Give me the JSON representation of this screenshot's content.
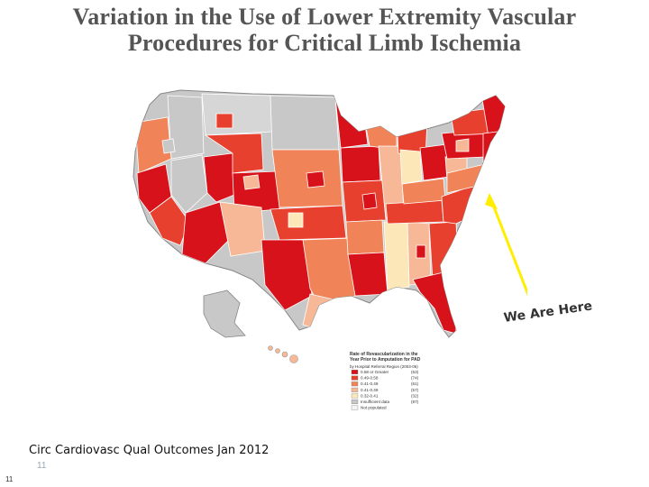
{
  "slide": {
    "title_line1": "Variation in the Use of Lower Extremity Vascular",
    "title_line2": "Procedures for Critical Limb Ischemia",
    "callout": "We Are Here",
    "citation": "Circ Cardiovasc Qual Outcomes Jan 2012",
    "page_number_inner": "11",
    "page_number_outer": "11"
  },
  "map": {
    "legend": {
      "title_line1": "Rate of Revascularization in the",
      "title_line2": "Year Prior to Amputation for PAD",
      "subtitle": "by Hospital Referral Region (2003-06)",
      "items": [
        {
          "label": "0.58 or Greater",
          "count": "(63)",
          "color": "#d8121a"
        },
        {
          "label": "0.49-0.58",
          "count": "(74)",
          "color": "#e8402e"
        },
        {
          "label": "0.41-0.49",
          "count": "(61)",
          "color": "#f08458"
        },
        {
          "label": "0.41-0.49",
          "count": "(57)",
          "color": "#f6b896"
        },
        {
          "label": "0.32-0.41",
          "count": "(32)",
          "color": "#fbe7b8"
        },
        {
          "label": "Insufficient data",
          "count": "(97)",
          "color": "#c8c8c8"
        },
        {
          "label": "Not populated",
          "count": "",
          "color": "#f4f4f4"
        }
      ]
    },
    "colors": {
      "arrow": "#ffee00",
      "border": "#ffffff"
    }
  }
}
